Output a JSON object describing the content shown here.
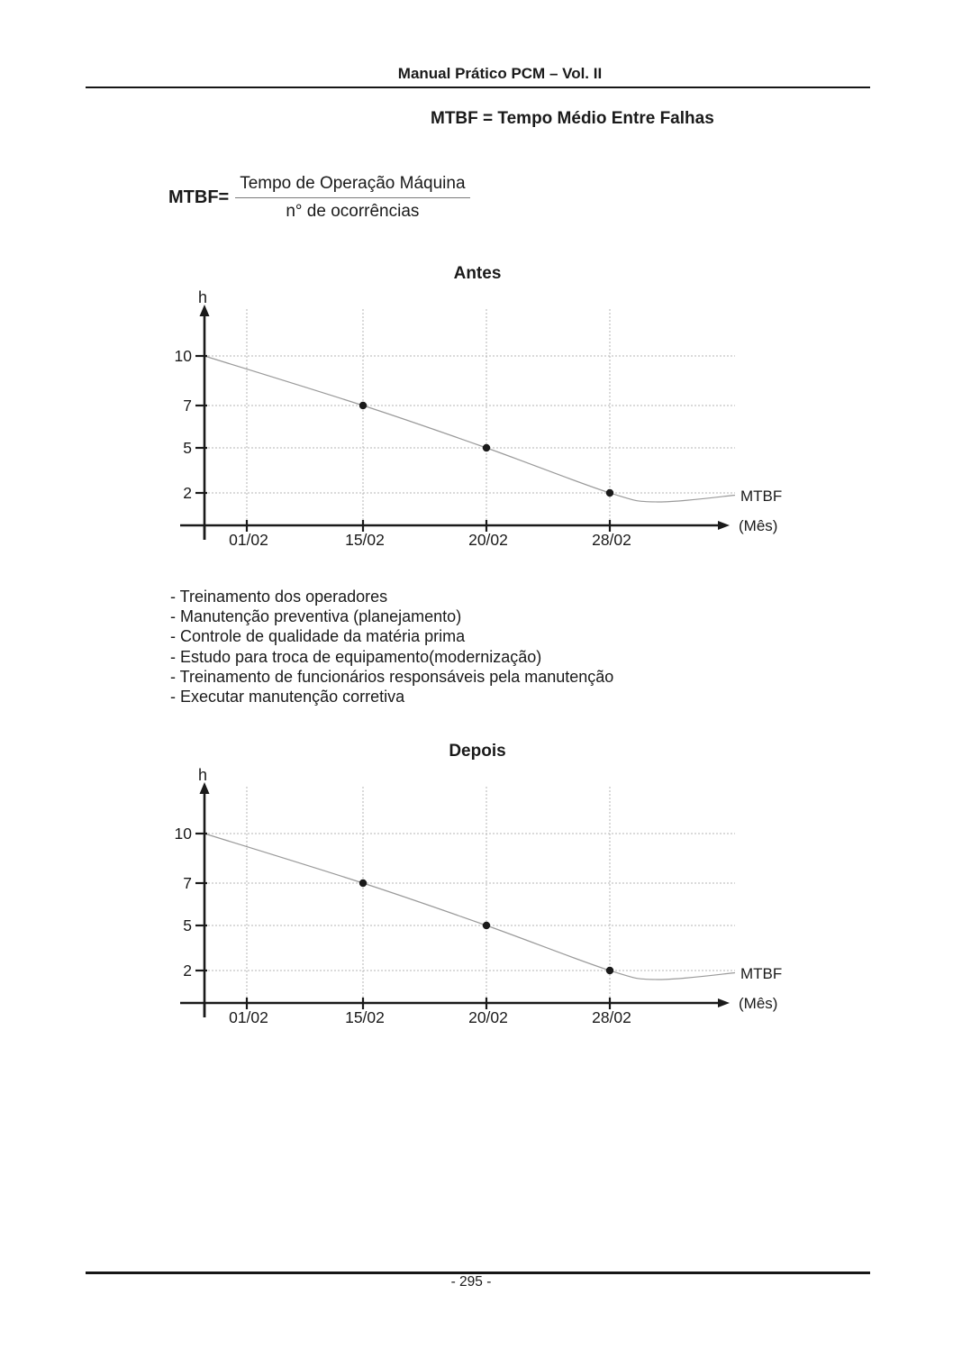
{
  "header": {
    "title": "Manual Prático PCM – Vol. II"
  },
  "title": "MTBF = Tempo Médio Entre Falhas",
  "formula": {
    "lhs": "MTBF=",
    "numerator": "Tempo de Operação Máquina",
    "denominator": "n° de ocorrências"
  },
  "bullets": [
    "- Treinamento dos operadores",
    "- Manutenção preventiva (planejamento)",
    "- Controle de qualidade da matéria prima",
    "- Estudo para troca de equipamento(modernização)",
    "- Treinamento de funcionários responsáveis pela manutenção",
    "- Executar manutenção corretiva"
  ],
  "footer": {
    "page_number": "- 295 -"
  },
  "chart_data": [
    {
      "type": "line",
      "title": "Antes",
      "ylabel": "h",
      "xlabel": "(Mês)",
      "series_label": "MTBF",
      "categories": [
        "01/02",
        "15/02",
        "20/02",
        "28/02"
      ],
      "yticks": [
        10,
        7,
        5,
        2
      ],
      "line": {
        "start_value": 10,
        "marked_points": [
          {
            "x": "15/02",
            "y": 7
          },
          {
            "x": "20/02",
            "y": 5
          },
          {
            "x": "28/02",
            "y": 2
          }
        ],
        "dip_value": 1.4,
        "end_value": 1.85
      },
      "grid": true,
      "legend_position": "right-of-line-end",
      "colors": {
        "axis": "#1a1a1a",
        "grid": "#b5b5b5",
        "line": "#9a9a9a",
        "marker": "#1a1a1a"
      }
    },
    {
      "type": "line",
      "title": "Depois",
      "ylabel": "h",
      "xlabel": "(Mês)",
      "series_label": "MTBF",
      "categories": [
        "01/02",
        "15/02",
        "20/02",
        "28/02"
      ],
      "yticks": [
        10,
        7,
        5,
        2
      ],
      "line": {
        "start_value": 10,
        "marked_points": [
          {
            "x": "15/02",
            "y": 7
          },
          {
            "x": "20/02",
            "y": 5
          },
          {
            "x": "28/02",
            "y": 2
          }
        ],
        "dip_value": 1.4,
        "end_value": 1.85
      },
      "grid": true,
      "legend_position": "right-of-line-end",
      "colors": {
        "axis": "#1a1a1a",
        "grid": "#b5b5b5",
        "line": "#9a9a9a",
        "marker": "#1a1a1a"
      }
    }
  ]
}
